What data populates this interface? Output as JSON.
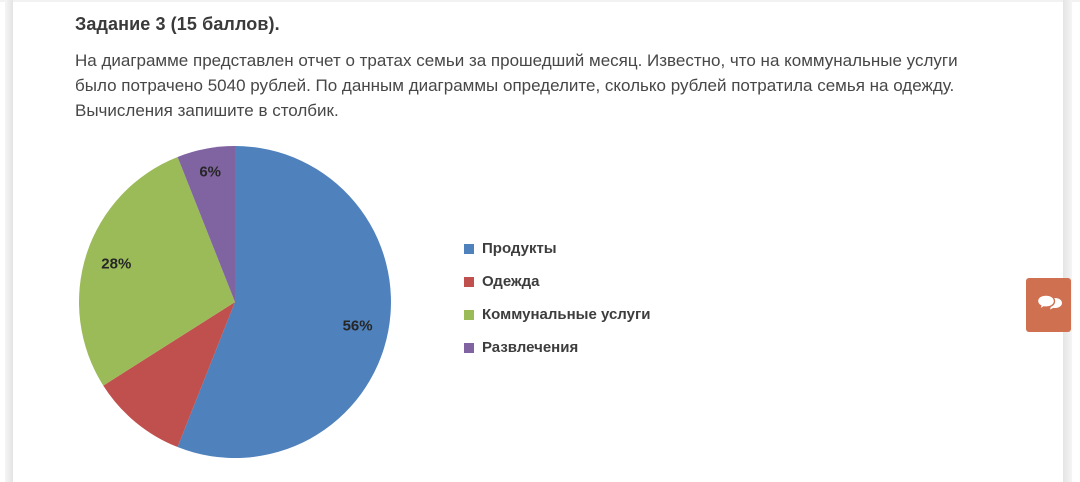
{
  "task": {
    "title": "Задание 3 (15 баллов).",
    "lines": [
      "На диаграмме представлен отчет о тратах семьи за прошедший месяц. Известно, что на коммунальные услуги",
      "было потрачено 5040 рублей. По данным диаграммы определите, сколько рублей потратила семья на одежду.",
      "Вычисления запишите в столбик."
    ]
  },
  "chart_data": {
    "type": "pie",
    "title": "",
    "legend_position": "right",
    "start_angle": "top",
    "direction": "clockwise",
    "slices": [
      {
        "label": "Продукты",
        "value": 56,
        "color": "#4F81BD",
        "data_label": "56%"
      },
      {
        "label": "Одежда",
        "value": 10,
        "color": "#C0504D",
        "data_label": ""
      },
      {
        "label": "Коммунальные услуги",
        "value": 28,
        "color": "#9BBB59",
        "data_label": "28%"
      },
      {
        "label": "Развлечения",
        "value": 6,
        "color": "#8064A2",
        "data_label": "6%"
      }
    ]
  },
  "chat_button": {
    "icon": "chat-bubbles-icon",
    "color": "#CF7050"
  }
}
